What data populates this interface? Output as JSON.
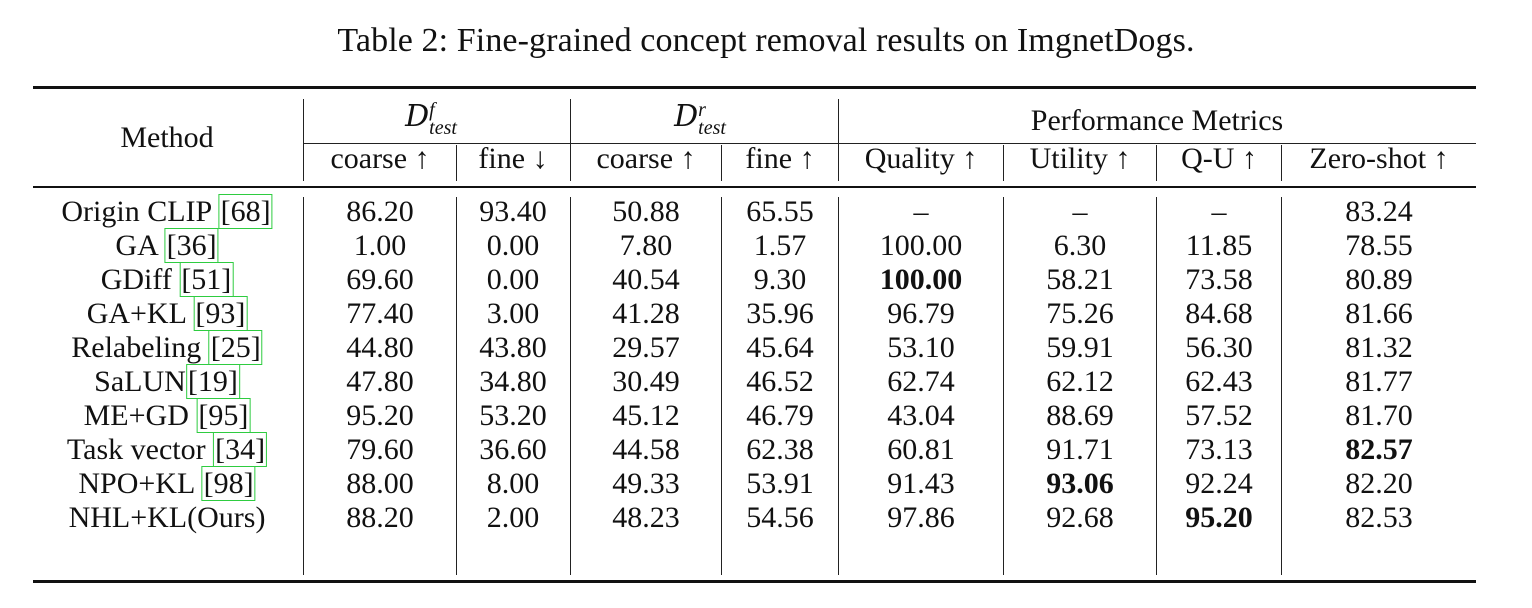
{
  "caption": "Table 2: Fine-grained concept removal results on ImgnetDogs.",
  "header": {
    "method": "Method",
    "group_forget": {
      "symbol": "D",
      "sup": "f",
      "sub": "test"
    },
    "group_retain": {
      "symbol": "D",
      "sup": "r",
      "sub": "test"
    },
    "group_perf": "Performance Metrics",
    "sub_columns": [
      "coarse ↑",
      "fine ↓",
      "coarse ↑",
      "fine ↑",
      "Quality ↑",
      "Utility ↑",
      "Q-U ↑",
      "Zero-shot ↑"
    ]
  },
  "rows": [
    {
      "name": "Origin CLIP ",
      "cite": "68",
      "cite_after": "",
      "values": [
        "86.20",
        "93.40",
        "50.88",
        "65.55",
        "–",
        "–",
        "–",
        "83.24"
      ]
    },
    {
      "name": "GA ",
      "cite": "36",
      "cite_after": "",
      "values": [
        "1.00",
        "0.00",
        "7.80",
        "1.57",
        "100.00",
        "6.30",
        "11.85",
        "78.55"
      ]
    },
    {
      "name": "GDiff ",
      "cite": "51",
      "cite_after": "",
      "values": [
        "69.60",
        "0.00",
        "40.54",
        "9.30",
        "100.00",
        "58.21",
        "73.58",
        "80.89"
      ],
      "bold": [
        4
      ]
    },
    {
      "name": "GA+KL ",
      "cite": "93",
      "cite_after": "",
      "values": [
        "77.40",
        "3.00",
        "41.28",
        "35.96",
        "96.79",
        "75.26",
        "84.68",
        "81.66"
      ]
    },
    {
      "name": "Relabeling ",
      "cite": "25",
      "cite_after": "",
      "values": [
        "44.80",
        "43.80",
        "29.57",
        "45.64",
        "53.10",
        "59.91",
        "56.30",
        "81.32"
      ]
    },
    {
      "name": "SaLUN",
      "cite": "19",
      "cite_after": "",
      "values": [
        "47.80",
        "34.80",
        "30.49",
        "46.52",
        "62.74",
        "62.12",
        "62.43",
        "81.77"
      ]
    },
    {
      "name": "ME+GD ",
      "cite": "95",
      "cite_after": "",
      "values": [
        "95.20",
        "53.20",
        "45.12",
        "46.79",
        "43.04",
        "88.69",
        "57.52",
        "81.70"
      ]
    },
    {
      "name": "Task vector ",
      "cite": "34",
      "cite_after": "",
      "values": [
        "79.60",
        "36.60",
        "44.58",
        "62.38",
        "60.81",
        "91.71",
        "73.13",
        "82.57"
      ],
      "bold": [
        7
      ]
    },
    {
      "name": "NPO+KL ",
      "cite": "98",
      "cite_after": "",
      "values": [
        "88.00",
        "8.00",
        "49.33",
        "53.91",
        "91.43",
        "93.06",
        "92.24",
        "82.20"
      ],
      "bold": [
        5
      ]
    },
    {
      "name": "NHL+KL(Ours)",
      "cite": "",
      "cite_after": "",
      "values": [
        "88.20",
        "2.00",
        "48.23",
        "54.56",
        "97.86",
        "92.68",
        "95.20",
        "82.53"
      ],
      "bold": [
        6
      ]
    }
  ]
}
